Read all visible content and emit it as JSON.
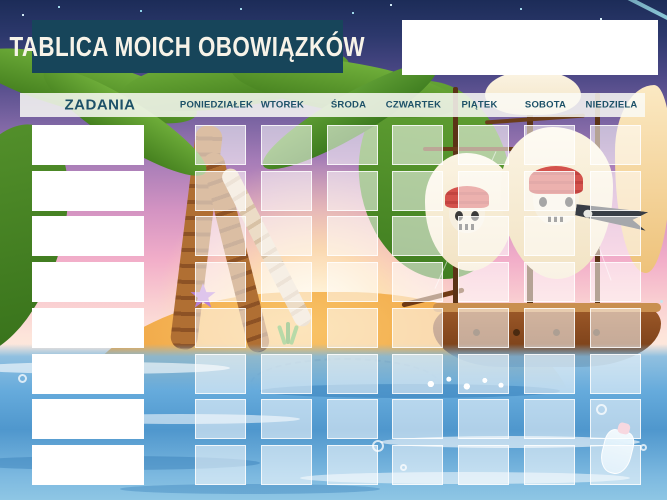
{
  "title": {
    "text": "TABLICA MOICH OBOWIĄZKÓW"
  },
  "name_box": {
    "value": ""
  },
  "table": {
    "tasks_header": "ZADANIA",
    "days": [
      "PONIEDZIAŁEK",
      "WTOREK",
      "ŚRODA",
      "CZWARTEK",
      "PIĄTEK",
      "SOBOTA",
      "NIEDZIELA"
    ],
    "tasks": [
      "",
      "",
      "",
      "",
      "",
      "",
      "",
      ""
    ]
  },
  "colors": {
    "title_box_bg": "#17455a",
    "title_text": "#f7f3e8",
    "header_bar_bg": "rgba(250,250,246,0.85)",
    "header_text": "#1d5168",
    "task_cell_bg": "#ffffff",
    "day_cell_bg": "rgba(255,255,255,0.55)"
  },
  "background": {
    "theme": "pirate-island-sunset-illustration",
    "elements": [
      "night-sky-stars",
      "comet",
      "palm-trees",
      "sun-glow",
      "sand-island",
      "treasure-trail",
      "pirate-ship",
      "skull-sails",
      "pirate-flags",
      "sea-water",
      "starfish",
      "grass-tuft",
      "message-bottle",
      "bubbles"
    ]
  }
}
